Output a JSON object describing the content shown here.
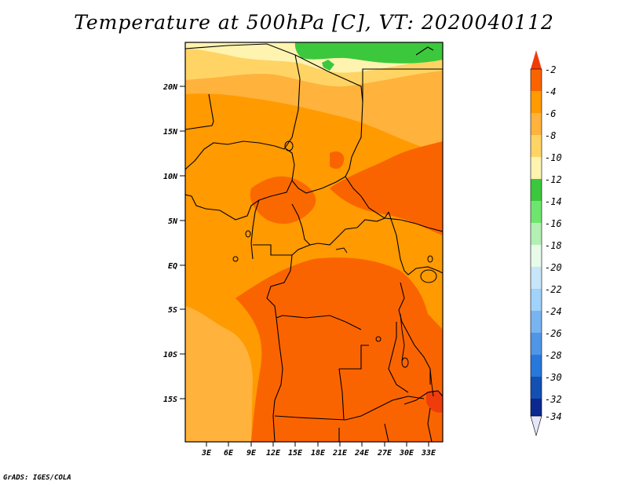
{
  "title": "Temperature at 500hPa [C], VT: 2020040112",
  "credit": "GrADS: IGES/COLA",
  "latitude_labels": [
    "20N",
    "15N",
    "10N",
    "5N",
    "EQ",
    "5S",
    "10S",
    "15S"
  ],
  "longitude_labels": [
    "3E",
    "6E",
    "9E",
    "12E",
    "15E",
    "18E",
    "21E",
    "24E",
    "27E",
    "30E",
    "33E"
  ],
  "colorbar": {
    "labels": [
      "-2",
      "-4",
      "-6",
      "-8",
      "-10",
      "-12",
      "-14",
      "-16",
      "-18",
      "-20",
      "-22",
      "-24",
      "-26",
      "-28",
      "-30",
      "-32",
      "-34"
    ],
    "colors": {
      "above_-2": "#f03c0a",
      "-2_-4": "#fa6400",
      "-4_-6": "#ff9a00",
      "-6_-8": "#ffb23c",
      "-8_-10": "#ffd464",
      "-10_-12": "#fff3b0",
      "-12_-14": "#3cc83c",
      "-14_-16": "#6ee66e",
      "-16_-18": "#b4f0b4",
      "-18_-20": "#e8faea",
      "-20_-22": "#c8e6fa",
      "-22_-24": "#a0d2fa",
      "-24_-26": "#78b4f0",
      "-26_-28": "#5096e6",
      "-28_-30": "#2878dc",
      "-30_-32": "#1450b4",
      "-32_-34": "#0a2890",
      "below_-34": "#e6e6fa"
    }
  }
}
